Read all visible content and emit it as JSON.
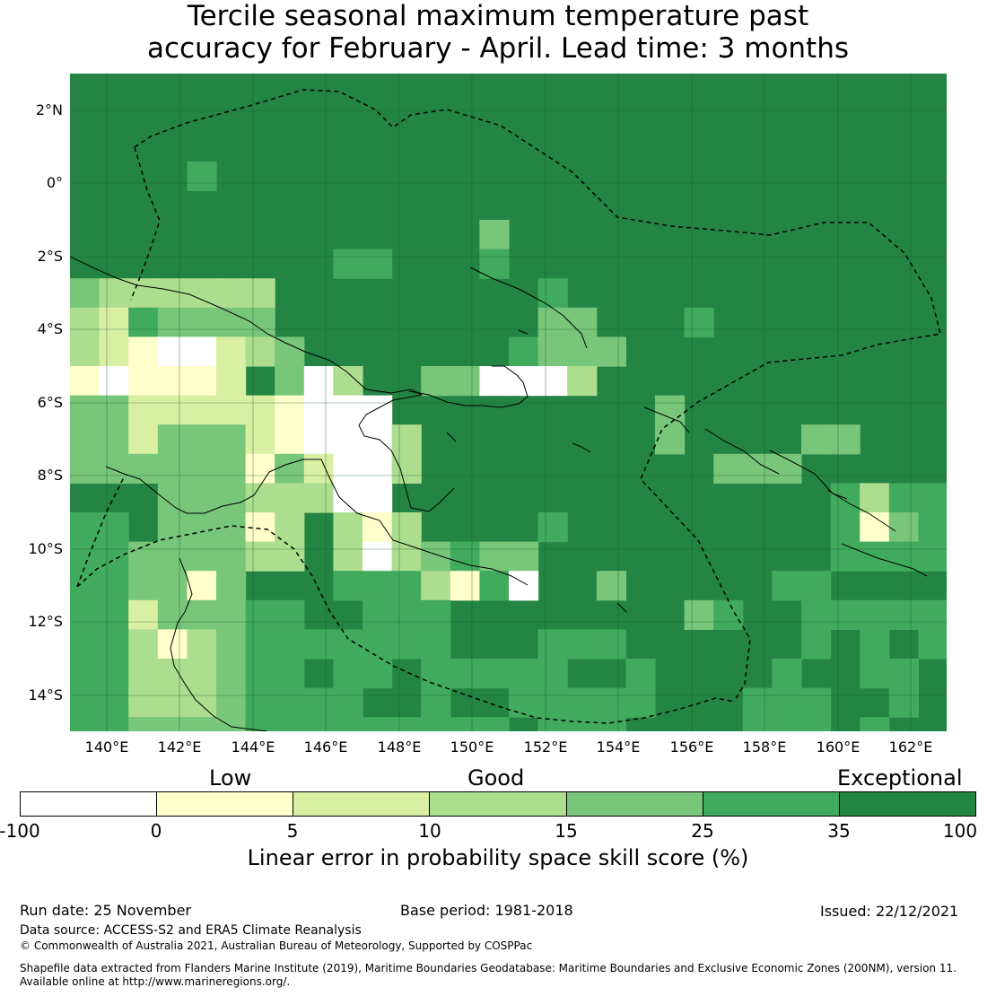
{
  "title": {
    "line1": "Tercile seasonal maximum temperature past",
    "line2": "accuracy for February - April. Lead time: 3 months"
  },
  "map": {
    "lat_labels": [
      "2°N",
      "0°",
      "2°S",
      "4°S",
      "6°S",
      "8°S",
      "10°S",
      "12°S",
      "14°S"
    ],
    "lon_labels": [
      "140°E",
      "142°E",
      "144°E",
      "146°E",
      "148°E",
      "150°E",
      "152°E",
      "154°E",
      "156°E",
      "158°E",
      "160°E",
      "162°E"
    ],
    "background_color": "#238443",
    "coastline_color": "#000000",
    "boundary_color": "#000000"
  },
  "legend": {
    "categories": [
      "Low",
      "Good",
      "Exceptional"
    ],
    "ticks": [
      "-100",
      "0",
      "5",
      "10",
      "15",
      "25",
      "35",
      "100"
    ],
    "colors": [
      "#ffffff",
      "#ffffcc",
      "#d9f0a3",
      "#addd8e",
      "#78c679",
      "#41ab5d",
      "#238443"
    ],
    "axis_title": "Linear error in probability space skill score (%)"
  },
  "footer": {
    "run_date": "Run date: 25 November",
    "base_period": "Base period: 1981-2018",
    "issued": "Issued: 22/12/2021",
    "data_source": "Data source: ACCESS-S2 and ERA5 Climate Reanalysis",
    "copyright": "© Commonwealth of Australia 2021, Australian Bureau of Meteorology, Supported by COSPPac",
    "shapefile_line1": "Shapefile data extracted from Flanders Marine Institute (2019), Maritime Boundaries Geodatabase: Maritime Boundaries and Exclusive Economic Zones (200NM), version 11.",
    "shapefile_line2": "Available online at http://www.marineregions.org/."
  }
}
